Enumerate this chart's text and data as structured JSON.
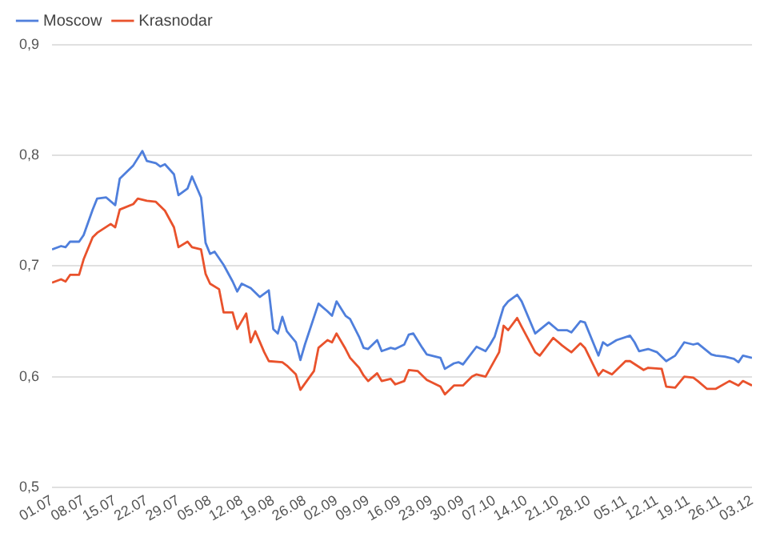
{
  "chart_data": {
    "type": "line",
    "legend": "top left",
    "grid": "y",
    "ylim": [
      0.5,
      0.9
    ],
    "yticks": [
      {
        "value": 0.5,
        "label": "0,5"
      },
      {
        "value": 0.6,
        "label": "0,6"
      },
      {
        "value": 0.7,
        "label": "0,7"
      },
      {
        "value": 0.8,
        "label": "0,8"
      },
      {
        "value": 0.9,
        "label": "0,9"
      }
    ],
    "xlim": [
      "--07-01",
      "--12-03"
    ],
    "xticks": [
      {
        "value": "--07-01",
        "label": "01.07"
      },
      {
        "value": "--07-08",
        "label": "08.07"
      },
      {
        "value": "--07-15",
        "label": "15.07"
      },
      {
        "value": "--07-22",
        "label": "22.07"
      },
      {
        "value": "--07-29",
        "label": "29.07"
      },
      {
        "value": "--08-05",
        "label": "05.08"
      },
      {
        "value": "--08-12",
        "label": "12.08"
      },
      {
        "value": "--08-19",
        "label": "19.08"
      },
      {
        "value": "--08-26",
        "label": "26.08"
      },
      {
        "value": "--09-02",
        "label": "02.09"
      },
      {
        "value": "--09-09",
        "label": "09.09"
      },
      {
        "value": "--09-16",
        "label": "16.09"
      },
      {
        "value": "--09-23",
        "label": "23.09"
      },
      {
        "value": "--09-30",
        "label": "30.09"
      },
      {
        "value": "--10-07",
        "label": "07.10"
      },
      {
        "value": "--10-14",
        "label": "14.10"
      },
      {
        "value": "--10-21",
        "label": "21.10"
      },
      {
        "value": "--10-28",
        "label": "28.10"
      },
      {
        "value": "--11-05",
        "label": "05.11"
      },
      {
        "value": "--11-12",
        "label": "12.11"
      },
      {
        "value": "--11-19",
        "label": "19.11"
      },
      {
        "value": "--11-26",
        "label": "26.11"
      },
      {
        "value": "--12-03",
        "label": "03.12"
      }
    ],
    "series": [
      {
        "name": "Moscow",
        "color": "#4f7fdc",
        "x": [
          "--07-01",
          "--07-03",
          "--07-04",
          "--07-05",
          "--07-07",
          "--07-08",
          "--07-10",
          "--07-11",
          "--07-13",
          "--07-15",
          "--07-16",
          "--07-19",
          "--07-21",
          "--07-22",
          "--07-24",
          "--07-25",
          "--07-26",
          "--07-28",
          "--07-29",
          "--07-31",
          "--08-01",
          "--08-03",
          "--08-04",
          "--08-05",
          "--08-06",
          "--08-08",
          "--08-10",
          "--08-11",
          "--08-12",
          "--08-14",
          "--08-16",
          "--08-18",
          "--08-19",
          "--08-20",
          "--08-21",
          "--08-22",
          "--08-24",
          "--08-25",
          "--08-26",
          "--08-29",
          "--08-31",
          "--09-01",
          "--09-02",
          "--09-04",
          "--09-05",
          "--09-07",
          "--09-08",
          "--09-09",
          "--09-11",
          "--09-12",
          "--09-14",
          "--09-15",
          "--09-17",
          "--09-18",
          "--09-19",
          "--09-21",
          "--09-22",
          "--09-25",
          "--09-26",
          "--09-28",
          "--09-29",
          "--09-30",
          "--10-03",
          "--10-05",
          "--10-06",
          "--10-07",
          "--10-09",
          "--10-10",
          "--10-12",
          "--10-13",
          "--10-16",
          "--10-19",
          "--10-21",
          "--10-23",
          "--10-24",
          "--10-26",
          "--10-27",
          "--10-30",
          "--10-31",
          "--11-01",
          "--11-03",
          "--11-06",
          "--11-07",
          "--11-08",
          "--11-10",
          "--11-12",
          "--11-14",
          "--11-16",
          "--11-18",
          "--11-20",
          "--11-21",
          "--11-24",
          "--11-25",
          "--11-27",
          "--11-29",
          "--11-30",
          "--12-01",
          "--12-03"
        ],
        "values": [
          0.715,
          0.718,
          0.717,
          0.722,
          0.722,
          0.728,
          0.751,
          0.761,
          0.762,
          0.755,
          0.779,
          0.791,
          0.804,
          0.795,
          0.793,
          0.79,
          0.792,
          0.783,
          0.764,
          0.77,
          0.781,
          0.762,
          0.721,
          0.711,
          0.713,
          0.701,
          0.686,
          0.677,
          0.684,
          0.68,
          0.672,
          0.678,
          0.643,
          0.639,
          0.654,
          0.641,
          0.631,
          0.615,
          0.629,
          0.666,
          0.659,
          0.655,
          0.668,
          0.655,
          0.652,
          0.636,
          0.626,
          0.625,
          0.633,
          0.623,
          0.626,
          0.625,
          0.629,
          0.638,
          0.639,
          0.626,
          0.62,
          0.617,
          0.607,
          0.612,
          0.613,
          0.611,
          0.627,
          0.623,
          0.629,
          0.636,
          0.663,
          0.668,
          0.674,
          0.668,
          0.639,
          0.649,
          0.642,
          0.642,
          0.64,
          0.65,
          0.649,
          0.619,
          0.631,
          0.628,
          0.633,
          0.637,
          0.631,
          0.623,
          0.625,
          0.622,
          0.614,
          0.619,
          0.631,
          0.629,
          0.63,
          0.62,
          0.619,
          0.618,
          0.616,
          0.613,
          0.619,
          0.617
        ]
      },
      {
        "name": "Krasnodar",
        "color": "#e9522c",
        "x": [
          "--07-01",
          "--07-03",
          "--07-04",
          "--07-05",
          "--07-07",
          "--07-08",
          "--07-10",
          "--07-11",
          "--07-14",
          "--07-15",
          "--07-16",
          "--07-19",
          "--07-20",
          "--07-22",
          "--07-24",
          "--07-26",
          "--07-28",
          "--07-29",
          "--07-31",
          "--08-01",
          "--08-03",
          "--08-04",
          "--08-05",
          "--08-07",
          "--08-08",
          "--08-10",
          "--08-11",
          "--08-13",
          "--08-14",
          "--08-15",
          "--08-17",
          "--08-18",
          "--08-21",
          "--08-22",
          "--08-24",
          "--08-25",
          "--08-28",
          "--08-29",
          "--08-31",
          "--09-01",
          "--09-02",
          "--09-04",
          "--09-05",
          "--09-07",
          "--09-08",
          "--09-09",
          "--09-11",
          "--09-12",
          "--09-14",
          "--09-15",
          "--09-17",
          "--09-18",
          "--09-20",
          "--09-22",
          "--09-25",
          "--09-26",
          "--09-28",
          "--09-30",
          "--10-02",
          "--10-03",
          "--10-05",
          "--10-08",
          "--10-09",
          "--10-10",
          "--10-12",
          "--10-13",
          "--10-16",
          "--10-17",
          "--10-20",
          "--10-22",
          "--10-23",
          "--10-24",
          "--10-26",
          "--10-27",
          "--10-30",
          "--10-31",
          "--11-02",
          "--11-05",
          "--11-06",
          "--11-09",
          "--11-10",
          "--11-13",
          "--11-14",
          "--11-16",
          "--11-18",
          "--11-20",
          "--11-21",
          "--11-23",
          "--11-25",
          "--11-28",
          "--11-30",
          "--12-01",
          "--12-03"
        ],
        "values": [
          0.685,
          0.688,
          0.686,
          0.692,
          0.692,
          0.706,
          0.726,
          0.73,
          0.738,
          0.735,
          0.751,
          0.756,
          0.761,
          0.759,
          0.758,
          0.75,
          0.735,
          0.717,
          0.722,
          0.717,
          0.715,
          0.693,
          0.684,
          0.679,
          0.658,
          0.658,
          0.643,
          0.657,
          0.631,
          0.641,
          0.622,
          0.614,
          0.613,
          0.61,
          0.602,
          0.588,
          0.605,
          0.626,
          0.633,
          0.631,
          0.639,
          0.625,
          0.617,
          0.608,
          0.601,
          0.596,
          0.603,
          0.596,
          0.598,
          0.593,
          0.596,
          0.606,
          0.605,
          0.597,
          0.591,
          0.584,
          0.592,
          0.592,
          0.6,
          0.602,
          0.6,
          0.622,
          0.646,
          0.642,
          0.653,
          0.645,
          0.622,
          0.619,
          0.635,
          0.628,
          0.625,
          0.622,
          0.63,
          0.626,
          0.601,
          0.606,
          0.602,
          0.614,
          0.614,
          0.606,
          0.608,
          0.607,
          0.591,
          0.59,
          0.6,
          0.599,
          0.596,
          0.589,
          0.589,
          0.596,
          0.592,
          0.596,
          0.592
        ]
      }
    ]
  }
}
